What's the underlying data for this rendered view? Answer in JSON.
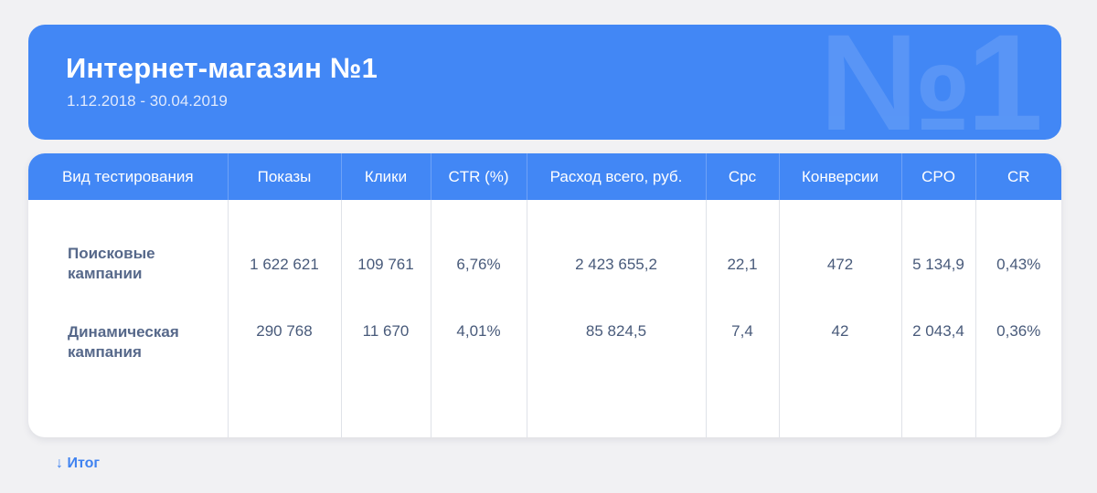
{
  "header": {
    "title": "Интернет-магазин №1",
    "dates": "1.12.2018 - 30.04.2019",
    "watermark": "№1"
  },
  "table": {
    "columns": [
      "Вид тестирования",
      "Показы",
      "Клики",
      "CTR (%)",
      "Расход всего, руб.",
      "Cpc",
      "Конверсии",
      "CPO",
      "CR"
    ],
    "rows": [
      [
        "Поисковые кампании",
        "1 622 621",
        "109 761",
        "6,76%",
        "2 423 655,2",
        "22,1",
        "472",
        "5 134,9",
        "0,43%"
      ],
      [
        "Динамическая кампания",
        "290 768",
        "11 670",
        "4,01%",
        "85 824,5",
        "7,4",
        "42",
        "2 043,4",
        "0,36%"
      ]
    ]
  },
  "footer": {
    "link": "↓ Итог"
  },
  "colors": {
    "accent": "#4287f5",
    "background": "#f1f1f3",
    "text": "#485a7a"
  }
}
